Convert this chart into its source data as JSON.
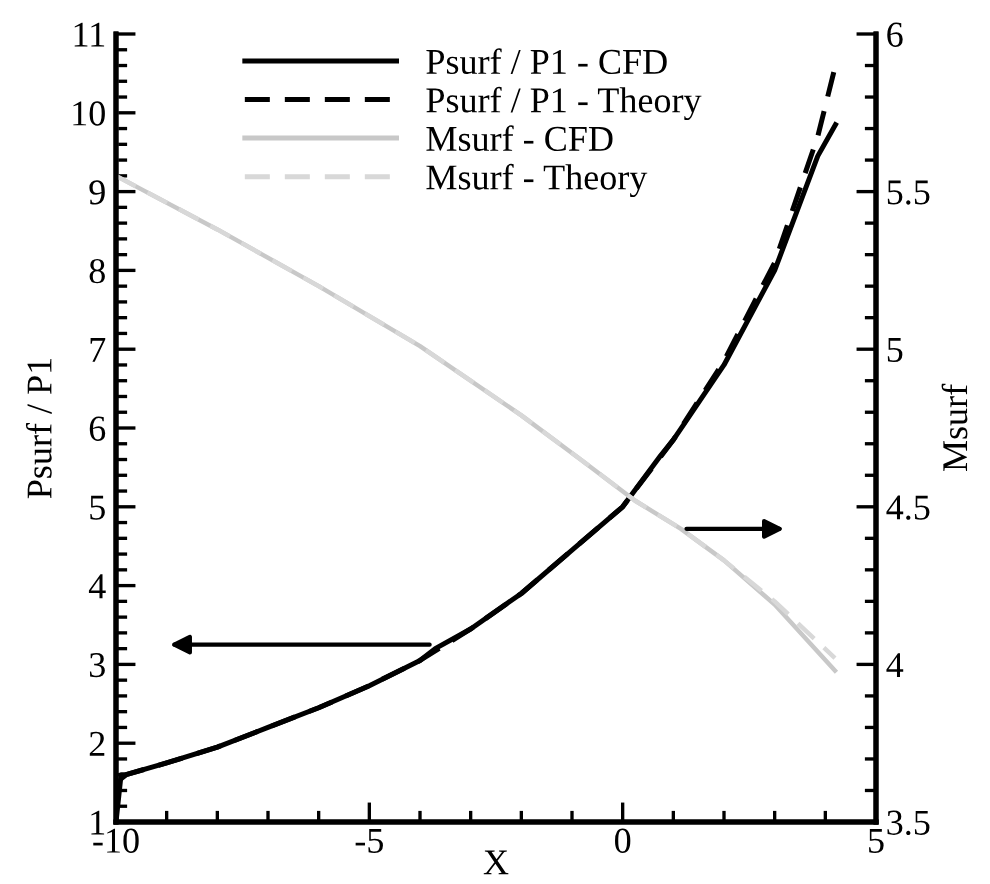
{
  "chart_data": {
    "type": "line",
    "xlabel": "X",
    "ylabel": "Psurf / P1",
    "y2label": "Msurf",
    "legend": "top",
    "grid": false,
    "xlim": [
      -10,
      5
    ],
    "ylim": [
      1,
      11
    ],
    "y2lim": [
      3.5,
      6
    ],
    "xticks": [
      -10,
      {
        "value": -9,
        "label": null
      },
      {
        "value": -8,
        "label": null
      },
      {
        "value": -7,
        "label": null
      },
      {
        "value": -6,
        "label": null
      },
      -5,
      {
        "value": -4,
        "label": null
      },
      {
        "value": -3,
        "label": null
      },
      {
        "value": -2,
        "label": null
      },
      {
        "value": -1,
        "label": null
      },
      0,
      {
        "value": 1,
        "label": null
      },
      {
        "value": 2,
        "label": null
      },
      {
        "value": 3,
        "label": null
      },
      {
        "value": 4,
        "label": null
      },
      5
    ],
    "yticks": [
      1,
      {
        "value": 1.2,
        "label": null
      },
      {
        "value": 1.4,
        "label": null
      },
      {
        "value": 1.6,
        "label": null
      },
      {
        "value": 1.8,
        "label": null
      },
      2,
      {
        "value": 2.2,
        "label": null
      },
      {
        "value": 2.4,
        "label": null
      },
      {
        "value": 2.6,
        "label": null
      },
      {
        "value": 2.8,
        "label": null
      },
      3,
      {
        "value": 3.2,
        "label": null
      },
      {
        "value": 3.4,
        "label": null
      },
      {
        "value": 3.6,
        "label": null
      },
      {
        "value": 3.8,
        "label": null
      },
      4,
      {
        "value": 4.2,
        "label": null
      },
      {
        "value": 4.4,
        "label": null
      },
      {
        "value": 4.6,
        "label": null
      },
      {
        "value": 4.8,
        "label": null
      },
      5,
      {
        "value": 5.2,
        "label": null
      },
      {
        "value": 5.4,
        "label": null
      },
      {
        "value": 5.6,
        "label": null
      },
      {
        "value": 5.8,
        "label": null
      },
      6,
      {
        "value": 6.2,
        "label": null
      },
      {
        "value": 6.4,
        "label": null
      },
      {
        "value": 6.6,
        "label": null
      },
      {
        "value": 6.8,
        "label": null
      },
      7,
      {
        "value": 7.2,
        "label": null
      },
      {
        "value": 7.4,
        "label": null
      },
      {
        "value": 7.6,
        "label": null
      },
      {
        "value": 7.8,
        "label": null
      },
      8,
      {
        "value": 8.2,
        "label": null
      },
      {
        "value": 8.4,
        "label": null
      },
      {
        "value": 8.6,
        "label": null
      },
      {
        "value": 8.8,
        "label": null
      },
      9,
      {
        "value": 9.2,
        "label": null
      },
      {
        "value": 9.4,
        "label": null
      },
      {
        "value": 9.6,
        "label": null
      },
      {
        "value": 9.8,
        "label": null
      },
      10,
      {
        "value": 10.2,
        "label": null
      },
      {
        "value": 10.4,
        "label": null
      },
      {
        "value": 10.6,
        "label": null
      },
      {
        "value": 10.8,
        "label": null
      },
      11
    ],
    "y2ticks": [
      3.5,
      {
        "value": 3.6,
        "label": null
      },
      {
        "value": 3.7,
        "label": null
      },
      {
        "value": 3.8,
        "label": null
      },
      {
        "value": 3.9,
        "label": null
      },
      4,
      {
        "value": 4.1,
        "label": null
      },
      {
        "value": 4.2,
        "label": null
      },
      {
        "value": 4.3,
        "label": null
      },
      {
        "value": 4.4,
        "label": null
      },
      4.5,
      {
        "value": 4.6,
        "label": null
      },
      {
        "value": 4.7,
        "label": null
      },
      {
        "value": 4.8,
        "label": null
      },
      {
        "value": 4.9,
        "label": null
      },
      5,
      {
        "value": 5.1,
        "label": null
      },
      {
        "value": 5.2,
        "label": null
      },
      {
        "value": 5.3,
        "label": null
      },
      {
        "value": 5.4,
        "label": null
      },
      5.5,
      {
        "value": 5.6,
        "label": null
      },
      {
        "value": 5.7,
        "label": null
      },
      {
        "value": 5.8,
        "label": null
      },
      {
        "value": 5.9,
        "label": null
      },
      6
    ],
    "series": [
      {
        "name": "Psurf / P1 - CFD",
        "color": "#000000",
        "line_style": "solid",
        "x": [
          -10,
          -9.9,
          -9.8,
          -9,
          -8,
          -7,
          -6,
          -5,
          -4,
          -3.7,
          -3,
          -2,
          -1,
          0,
          0.75,
          1,
          2,
          3,
          3.85,
          4.2
        ],
        "values": [
          1,
          1.6,
          1.6,
          1.75,
          1.95,
          2.2,
          2.45,
          2.73,
          3.05,
          3.2,
          3.45,
          3.9,
          4.45,
          5.0,
          5.65,
          5.85,
          6.8,
          8.0,
          9.45,
          9.85
        ]
      },
      {
        "name": "Psurf / P1 - Theory",
        "color": "#000000",
        "line_style": "dashed",
        "x": [
          -9.9,
          -9.8,
          -9,
          -8,
          -7,
          -6,
          -5,
          -4,
          -3,
          -2,
          -1,
          0,
          1,
          2,
          3,
          3.85,
          4.2
        ],
        "values": [
          1.55,
          1.6,
          1.75,
          1.95,
          2.2,
          2.45,
          2.73,
          3.05,
          3.45,
          3.9,
          4.45,
          5.0,
          5.85,
          6.85,
          8.1,
          9.7,
          10.6
        ]
      },
      {
        "name": "Msurf - CFD",
        "color": "#c8c8c8",
        "line_style": "solid",
        "axis": "y2",
        "x": [
          -10,
          -10,
          -8,
          -6,
          -4,
          -2,
          -0.83,
          0.24,
          1.15,
          2,
          3,
          4.19
        ],
        "values": [
          5.9,
          5.55,
          5.38,
          5.2,
          5.01,
          4.79,
          4.65,
          4.52,
          4.43,
          4.33,
          4.19,
          3.98
        ]
      },
      {
        "name": "Msurf - Theory",
        "color": "#d8d8d8",
        "line_style": "dashed",
        "axis": "y2",
        "x": [
          -10,
          -8,
          -6,
          -4,
          -2,
          -0.83,
          0.24,
          1.15,
          2,
          3,
          4.19
        ],
        "values": [
          5.55,
          5.38,
          5.2,
          5.01,
          4.79,
          4.65,
          4.52,
          4.43,
          4.33,
          4.2,
          4.02
        ]
      }
    ]
  }
}
